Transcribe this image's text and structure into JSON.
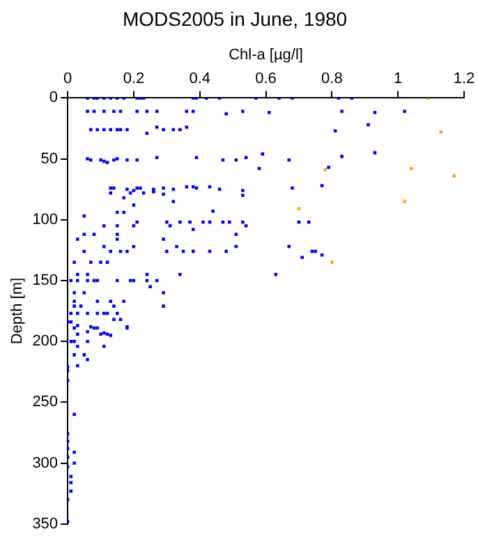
{
  "chart_data": {
    "type": "scatter",
    "title": "MODS2005 in June, 1980",
    "xlabel": "Chl-a [µg/l]",
    "ylabel": "Depth [m]",
    "xlim": [
      0,
      1.2
    ],
    "xticks": [
      0,
      0.2,
      0.4,
      0.6,
      0.8,
      1,
      1.2
    ],
    "ylim": [
      350,
      0
    ],
    "yticks": [
      0,
      50,
      100,
      150,
      200,
      250,
      300,
      350
    ],
    "grid": false,
    "legend": false,
    "marker": "square",
    "series": [
      {
        "color": "#0000ff",
        "x": [
          0.06,
          0.08,
          0.09,
          0.11,
          0.13,
          0.15,
          0.17,
          0.21,
          0.22,
          0.23,
          0.38,
          0.39,
          0.42,
          0.46,
          0.57,
          0.64,
          0.68,
          0.82,
          0.86,
          0.06,
          0.08,
          0.11,
          0.14,
          0.16,
          0.21,
          0.24,
          0.27,
          0.36,
          0.38,
          0.48,
          0.53,
          0.61,
          0.83,
          0.93,
          1.02,
          0.07,
          0.09,
          0.11,
          0.13,
          0.15,
          0.16,
          0.18,
          0.24,
          0.27,
          0.29,
          0.32,
          0.34,
          0.36,
          0.81,
          0.91,
          0.06,
          0.07,
          0.1,
          0.11,
          0.12,
          0.14,
          0.15,
          0.18,
          0.21,
          0.27,
          0.39,
          0.47,
          0.51,
          0.54,
          0.58,
          0.59,
          0.67,
          0.79,
          0.83,
          0.93,
          0.13,
          0.14,
          0.18,
          0.2,
          0.21,
          0.22,
          0.26,
          0.29,
          0.32,
          0.36,
          0.39,
          0.43,
          0.46,
          0.53,
          0.68,
          0.77,
          0.13,
          0.17,
          0.19,
          0.23,
          0.26,
          0.29,
          0.32,
          0.38,
          0.53,
          0.2,
          0.15,
          0.17,
          0.44,
          0.05,
          0.21,
          0.3,
          0.34,
          0.37,
          0.41,
          0.43,
          0.47,
          0.49,
          0.53,
          0.7,
          0.73,
          0.11,
          0.15,
          0.2,
          0.31,
          0.54,
          0.38,
          0.05,
          0.08,
          0.15,
          0.51,
          0.03,
          0.15,
          0.29,
          0.11,
          0.2,
          0.33,
          0.51,
          0.67,
          0.05,
          0.13,
          0.16,
          0.18,
          0.3,
          0.35,
          0.38,
          0.43,
          0.48,
          0.74,
          0.75,
          0.71,
          0.77,
          0.02,
          0.07,
          0.1,
          0.12,
          0.03,
          0.06,
          0.24,
          0.34,
          0.63,
          0.01,
          0.03,
          0.06,
          0.08,
          0.09,
          0.15,
          0.19,
          0.2,
          0.24,
          0.27,
          0.25,
          0.02,
          0.05,
          0.29,
          0.02,
          0.09,
          0.13,
          0.17,
          0.02,
          0.04,
          0.14,
          0.29,
          0.01,
          0.03,
          0.06,
          0.09,
          0.11,
          0.12,
          0.15,
          0.14,
          0.16,
          0.0,
          0.01,
          0.02,
          0.08,
          0.09,
          0.18,
          0.03,
          0.1,
          0.12,
          0.03,
          0.07,
          0.18,
          0.06,
          0.11,
          0.13,
          0.01,
          0.02,
          0.06,
          0.11,
          0.03,
          0.02,
          0.05,
          0.06,
          0.03,
          0.0,
          0.0,
          0.0,
          0.02,
          0,
          0,
          0,
          0,
          0,
          0.02,
          0.02,
          0.01,
          0.01,
          0.01,
          0.0,
          0.0
        ],
        "values": [
          0,
          0,
          0,
          0,
          0,
          0,
          0,
          0,
          0,
          0,
          0,
          0,
          0,
          0,
          0,
          0,
          0,
          0,
          0,
          11,
          11,
          11,
          11,
          11,
          11,
          11,
          11,
          11,
          11,
          13,
          11,
          12,
          11,
          12,
          11,
          26,
          26,
          26,
          26,
          26,
          26,
          26,
          29,
          24,
          26,
          26,
          26,
          24,
          27,
          22,
          50,
          51,
          51,
          52,
          53,
          51,
          50,
          51,
          51,
          49,
          49,
          51,
          51,
          49,
          58,
          46,
          51,
          57,
          48,
          45,
          74,
          74,
          75,
          76,
          74,
          74,
          75,
          74,
          75,
          73,
          74,
          73,
          75,
          76,
          74,
          72,
          78,
          82,
          78,
          78,
          77,
          79,
          85,
          73,
          80,
          88,
          94,
          94,
          93,
          97,
          102,
          102,
          102,
          102,
          102,
          102,
          102,
          102,
          102,
          102,
          102,
          105,
          105,
          105,
          105,
          105,
          108,
          112,
          112,
          112,
          112,
          116,
          116,
          116,
          122,
          122,
          122,
          122,
          122,
          126,
          126,
          126,
          126,
          126,
          126,
          126,
          126,
          126,
          126,
          126,
          131,
          129,
          135,
          135,
          135,
          135,
          145,
          145,
          145,
          145,
          145,
          150,
          150,
          150,
          150,
          150,
          150,
          150,
          150,
          150,
          150,
          155,
          160,
          160,
          160,
          167,
          167,
          167,
          167,
          171,
          171,
          171,
          171,
          177,
          177,
          177,
          177,
          177,
          177,
          177,
          182,
          182,
          184,
          184,
          189,
          189,
          189,
          189,
          194,
          194,
          194,
          187,
          188,
          188,
          192,
          193,
          195,
          200,
          200,
          200,
          204,
          204,
          211,
          211,
          215,
          220,
          221,
          224,
          232,
          260,
          276,
          282,
          288,
          295,
          303,
          291,
          300,
          311,
          316,
          323,
          330,
          348
        ]
      },
      {
        "color": "#ffa500",
        "x": [
          1.09,
          1.13,
          1.17,
          1.04,
          1.02,
          0.78,
          0.7,
          0.8
        ],
        "values": [
          0,
          28,
          64,
          58,
          85,
          59,
          91,
          135
        ]
      }
    ]
  }
}
